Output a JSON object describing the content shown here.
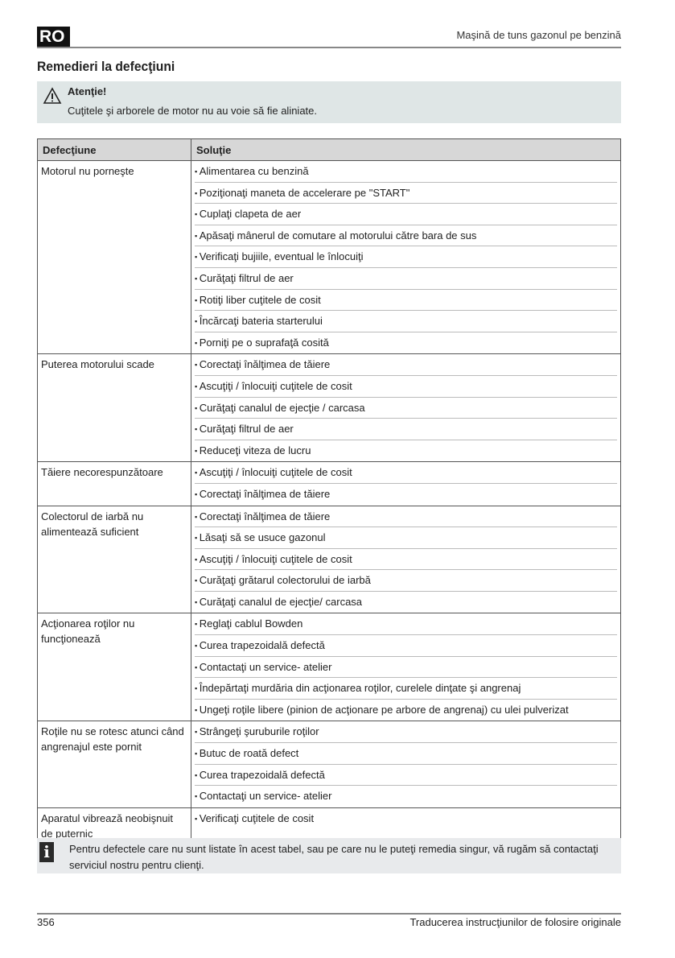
{
  "header": {
    "lang": "RO",
    "doc_title": "Maşină de tuns gazonul pe benzină"
  },
  "section_title": "Remedieri la defecţiuni",
  "warning": {
    "icon": "warning-triangle-icon",
    "title": "Atenţie!",
    "text": "Cuţitele şi arborele de motor nu au voie să fie aliniate."
  },
  "table": {
    "headers": [
      "Defecţiune",
      "Soluţie"
    ],
    "rows": [
      {
        "fault": "Motorul nu porneşte",
        "solutions": [
          "Alimentarea cu benzină",
          "Poziţionaţi maneta de accelerare pe \"START\"",
          "Cuplaţi clapeta de aer",
          "Apăsaţi mânerul de comutare al motorului către bara de sus",
          "Verificaţi bujiile, eventual le înlocuiţi",
          "Curăţaţi filtrul de aer",
          "Rotiţi liber cuţitele de cosit",
          "Încărcaţi bateria starterului",
          "Porniţi pe o suprafaţă cosită"
        ]
      },
      {
        "fault": "Puterea motorului scade",
        "solutions": [
          "Corectaţi înălţimea de tăiere",
          "Ascuţiţi / înlocuiţi cuţitele de cosit",
          "Curăţaţi canalul de ejecţie / carcasa",
          "Curăţaţi filtrul de aer",
          "Reduceţi viteza de lucru"
        ]
      },
      {
        "fault": "Tăiere necorespunzătoare",
        "solutions": [
          "Ascuţiţi / înlocuiţi cuţitele de cosit",
          "Corectaţi înălţimea de tăiere"
        ]
      },
      {
        "fault": "Colectorul de iarbă nu alimentează suficient",
        "solutions": [
          "Corectaţi înălţimea de tăiere",
          "Lăsaţi să se usuce gazonul",
          "Ascuţiţi / înlocuiţi cuţitele de cosit",
          "Curăţaţi grătarul colectorului de iarbă",
          "Curăţaţi canalul de ejecţie/ carcasa"
        ]
      },
      {
        "fault": "Acţionarea roţilor nu funcţionează",
        "solutions": [
          "Reglaţi cablul Bowden",
          "Curea trapezoidală defectă",
          "Contactaţi un service- atelier",
          "Îndepărtaţi murdăria din acţionarea roţilor, curelele dinţate şi angrenaj",
          "Ungeţi roţile libere (pinion de acţionare pe arbore de angrenaj) cu ulei pulverizat"
        ]
      },
      {
        "fault": "Roţile nu se rotesc atunci când angrenajul este pornit",
        "solutions": [
          "Strângeţi şuruburile roţilor",
          "Butuc de roată defect",
          "Curea trapezoidală defectă",
          "Contactaţi un service- atelier"
        ]
      },
      {
        "fault": "Aparatul vibrează neobişnuit de puternic",
        "solutions": [
          "Verificaţi cuţitele de cosit"
        ]
      }
    ]
  },
  "info": {
    "icon": "info-icon",
    "text": "Pentru defectele care nu sunt listate în acest tabel, sau pe care nu le puteţi remedia singur, vă rugăm să contactaţi serviciul nostru pentru clienţi."
  },
  "footer": {
    "page": "356",
    "text": "Traducerea instrucţiunilor de folosire originale"
  }
}
